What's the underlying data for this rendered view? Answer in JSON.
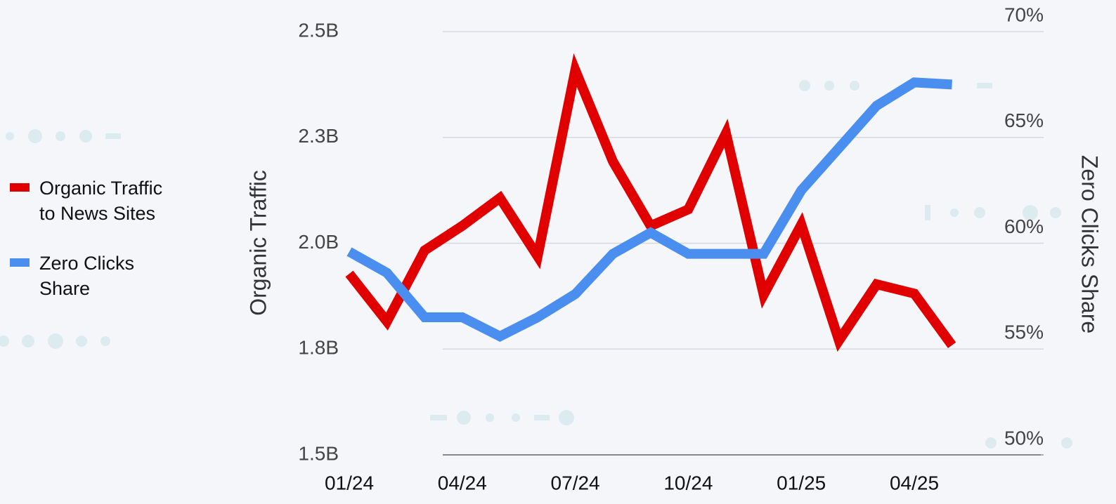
{
  "chart_data": {
    "type": "line",
    "categories": [
      "01/24",
      null,
      null,
      "04/24",
      null,
      null,
      "07/24",
      null,
      null,
      "10/24",
      null,
      null,
      "01/25",
      null,
      null,
      "04/25",
      null
    ],
    "series": [
      {
        "name": "Organic Traffic to News Sites",
        "color": "#e00000",
        "axis": "y",
        "values": [
          1.928,
          1.815,
          1.983,
          2.041,
          2.107,
          1.969,
          2.409,
          2.193,
          2.041,
          2.08,
          2.26,
          1.878,
          2.044,
          1.77,
          1.903,
          1.881,
          1.759
        ]
      },
      {
        "name": "Zero Clicks Share",
        "color": "#4a8ef0",
        "axis": "y2",
        "values": [
          59.6,
          58.6,
          56.5,
          56.5,
          55.6,
          56.5,
          57.6,
          59.5,
          60.5,
          59.5,
          59.5,
          59.5,
          62.5,
          64.5,
          66.5,
          67.6,
          67.5
        ]
      }
    ],
    "ylabel": "Organic Traffic",
    "y2label": "Zero Clicks Share",
    "ylim": [
      1.5,
      2.5
    ],
    "yticks": [
      {
        "value": 1.5,
        "label": "1.5B"
      },
      {
        "value": 1.75,
        "label": "1.8B"
      },
      {
        "value": 2.0,
        "label": "2.0B"
      },
      {
        "value": 2.25,
        "label": "2.3B"
      },
      {
        "value": 2.5,
        "label": "2.5B"
      }
    ],
    "y2lim": [
      50,
      70
    ],
    "y2ticks": [
      {
        "value": 50,
        "label": "50%"
      },
      {
        "value": 55,
        "label": "55%"
      },
      {
        "value": 60,
        "label": "60%"
      },
      {
        "value": 65,
        "label": "65%"
      },
      {
        "value": 70,
        "label": "70%"
      }
    ],
    "grid": true,
    "legend": "left"
  }
}
